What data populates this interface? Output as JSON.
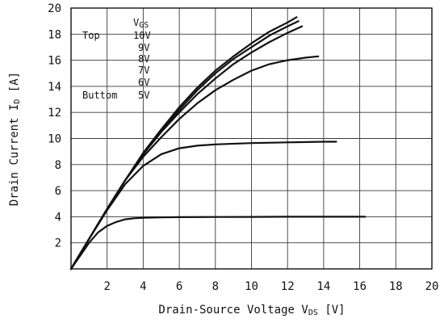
{
  "chart_data": {
    "type": "line",
    "title": "",
    "xlabel": {
      "main": "Drain-Source Voltage ",
      "symbol": "V",
      "sub": "DS",
      "unit": " [V]"
    },
    "ylabel": {
      "main": "Drain Current ",
      "symbol": "I",
      "sub": "D",
      "unit": " [A]"
    },
    "xlim": [
      0,
      20
    ],
    "ylim": [
      0,
      20
    ],
    "xticks": [
      "2",
      "4",
      "6",
      "8",
      "10",
      "12",
      "14",
      "16",
      "18",
      "20"
    ],
    "yticks": [
      "2",
      "4",
      "6",
      "8",
      "10",
      "12",
      "14",
      "16",
      "18",
      "20"
    ],
    "grid": true,
    "legend": {
      "position": "top-left",
      "header": {
        "symbol": "V",
        "sub": "GS"
      },
      "top_label": "Top",
      "bottom_label": "Buttom",
      "entries": [
        "10V",
        "9V",
        "8V",
        "7V",
        "6V",
        "5V"
      ]
    },
    "series": [
      {
        "x": [
          0,
          1,
          2,
          3,
          4,
          5,
          6,
          7,
          8,
          9,
          10,
          11,
          12,
          12.5
        ],
        "y": [
          0,
          2.3,
          4.6,
          6.8,
          8.9,
          10.7,
          12.4,
          13.9,
          15.2,
          16.3,
          17.3,
          18.2,
          18.9,
          19.3
        ]
      },
      {
        "x": [
          0,
          1,
          2,
          3,
          4,
          5,
          6,
          7,
          8,
          9,
          10,
          11,
          12,
          12.6
        ],
        "y": [
          0,
          2.3,
          4.6,
          6.8,
          8.8,
          10.6,
          12.2,
          13.7,
          15.0,
          16.1,
          17.0,
          17.9,
          18.6,
          19.0
        ]
      },
      {
        "x": [
          0,
          1,
          2,
          3,
          4,
          5,
          6,
          7,
          8,
          9,
          10,
          11,
          12,
          12.8
        ],
        "y": [
          0,
          2.3,
          4.6,
          6.8,
          8.8,
          10.5,
          12.0,
          13.4,
          14.6,
          15.7,
          16.6,
          17.4,
          18.1,
          18.6
        ]
      },
      {
        "x": [
          0,
          1,
          2,
          3,
          4,
          5,
          6,
          7,
          8,
          9,
          10,
          11,
          12,
          13,
          13.7
        ],
        "y": [
          0,
          2.3,
          4.6,
          6.8,
          8.6,
          10.1,
          11.5,
          12.7,
          13.7,
          14.5,
          15.2,
          15.7,
          16.0,
          16.2,
          16.3
        ]
      },
      {
        "x": [
          0,
          1,
          2,
          3,
          4,
          5,
          6,
          7,
          8,
          10,
          12,
          14,
          14.7
        ],
        "y": [
          0,
          2.3,
          4.5,
          6.5,
          7.9,
          8.8,
          9.25,
          9.45,
          9.55,
          9.65,
          9.7,
          9.75,
          9.75
        ]
      },
      {
        "x": [
          0,
          0.5,
          1,
          1.5,
          2,
          2.5,
          3,
          3.5,
          4,
          5,
          6,
          8,
          10,
          12,
          14,
          16.3
        ],
        "y": [
          0,
          1.0,
          2.0,
          2.8,
          3.3,
          3.6,
          3.8,
          3.88,
          3.92,
          3.95,
          3.97,
          3.98,
          3.99,
          4.0,
          4.0,
          4.0
        ]
      }
    ]
  }
}
